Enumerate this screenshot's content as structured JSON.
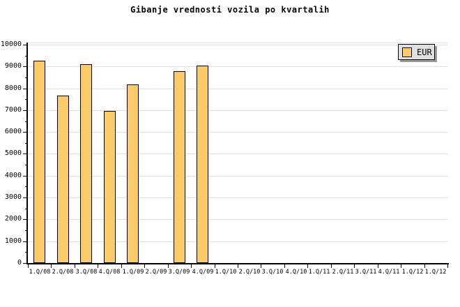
{
  "title": "Gibanje vrednosti vozila po kvartalih",
  "legend": {
    "label": "EUR"
  },
  "colors": {
    "bar_fill": "#fccb69",
    "bar_border": "#000000",
    "grid": "#e0e0e0",
    "axis": "#000000",
    "legend_bg": "#e0e0e0",
    "legend_shadow": "#9a9a9a"
  },
  "chart_data": {
    "type": "bar",
    "title": "Gibanje vrednosti vozila po kvartalih",
    "categories": [
      "1.Q/08",
      "2.Q/08",
      "3.Q/08",
      "4.Q/08",
      "1.Q/09",
      "2.Q/09",
      "3.Q/09",
      "4.Q/09",
      "1.Q/10",
      "2.Q/10",
      "3.Q/10",
      "4.Q/10",
      "1.Q/11",
      "2.Q/11",
      "3.Q/11",
      "4.Q/11",
      "1.Q/12",
      "1.Q/12"
    ],
    "series": [
      {
        "name": "EUR",
        "values": [
          9250,
          7670,
          9100,
          6980,
          8180,
          null,
          8770,
          9050,
          null,
          null,
          null,
          null,
          null,
          null,
          null,
          null,
          null,
          null
        ]
      }
    ],
    "xlabel": "",
    "ylabel": "",
    "ylim": [
      0,
      10000
    ],
    "ytick_major": 1000,
    "ytick_minor": 500,
    "grid": "horizontal",
    "legend_position": "top-right"
  }
}
